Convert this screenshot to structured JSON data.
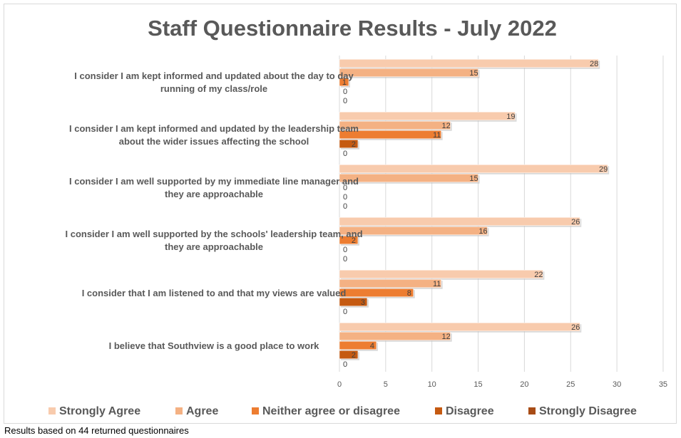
{
  "chart_data": {
    "type": "bar",
    "orientation": "horizontal",
    "title": "Staff Questionnaire Results - July 2022",
    "categories": [
      [
        "I consider I am kept informed and updated about the day to day",
        "running of my class/role"
      ],
      [
        "I consider I am kept informed and updated by the leadership team",
        "about the wider issues affecting the school"
      ],
      [
        "I consider I am well supported by my immediate line manager and",
        "they are approachable"
      ],
      [
        "I consider I am well supported by the schools' leadership team, and",
        "they are approachable"
      ],
      [
        "I consider that I am listened to and that my views are valued"
      ],
      [
        "I believe that Southview is a good place to work"
      ]
    ],
    "series": [
      {
        "name": "Strongly Agree",
        "color": "#f8cbad",
        "values": [
          28,
          19,
          29,
          26,
          22,
          26
        ]
      },
      {
        "name": "Agree",
        "color": "#f4b183",
        "values": [
          15,
          12,
          15,
          16,
          11,
          12
        ]
      },
      {
        "name": "Neither agree or disagree",
        "color": "#ed7d31",
        "values": [
          1,
          11,
          0,
          2,
          8,
          4
        ]
      },
      {
        "name": "Disagree",
        "color": "#c55a11",
        "values": [
          0,
          2,
          0,
          0,
          3,
          2
        ]
      },
      {
        "name": "Strongly Disagree",
        "color": "#a84c16",
        "values": [
          0,
          0,
          0,
          0,
          0,
          0
        ]
      }
    ],
    "x_ticks": [
      0,
      5,
      10,
      15,
      20,
      25,
      30,
      35
    ],
    "xlim": [
      0,
      35
    ],
    "grid": true,
    "legend_position": "bottom"
  },
  "footnote": "Results based on 44 returned questionnaires"
}
